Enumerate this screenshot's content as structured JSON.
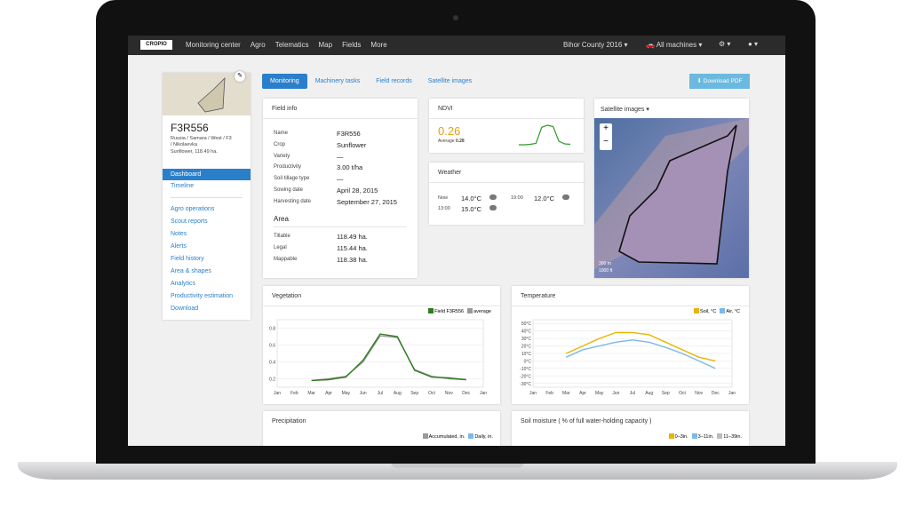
{
  "navbar": {
    "logo": "CROPIO",
    "items": [
      "Monitoring center",
      "Agro",
      "Telematics",
      "Map",
      "Fields",
      "More"
    ],
    "season": "Bihor County 2016",
    "machines": "All machines"
  },
  "sidebar": {
    "field_name": "F3R556",
    "location": "Russia / Samara / West / F3 / Nikolaevka",
    "summary": "Sunflower, 118.49 ha.",
    "menu_top": [
      "Dashboard",
      "Timeline"
    ],
    "menu": [
      "Agro operations",
      "Scout reports",
      "Notes",
      "Alerts",
      "Field history",
      "Area & shapes",
      "Analytics",
      "Productivity estimation",
      "Download"
    ]
  },
  "tabs": [
    "Monitoring",
    "Machinery tasks",
    "Field records",
    "Satellite images"
  ],
  "download": "Download PDF",
  "field_info": {
    "title": "Field info",
    "rows": [
      [
        "Name",
        "F3R556"
      ],
      [
        "Crop",
        "Sunflower"
      ],
      [
        "Variety",
        "—"
      ],
      [
        "Productivity",
        "3.00 t/ha"
      ],
      [
        "Soil tillage type",
        "—"
      ],
      [
        "Sowing date",
        "April 28, 2015"
      ],
      [
        "Harvesting date",
        "September 27, 2015"
      ]
    ],
    "area_title": "Area",
    "area_rows": [
      [
        "Tillable",
        "118.49 ha."
      ],
      [
        "Legal",
        "115.44 ha."
      ],
      [
        "Mappable",
        "118.38 ha."
      ]
    ]
  },
  "ndvi": {
    "title": "NDVI",
    "value": "0.26",
    "average_label": "Average",
    "average": "0.28",
    "sparkline": [
      0.1,
      0.1,
      0.11,
      0.13,
      0.5,
      0.55,
      0.52,
      0.18,
      0.12,
      0.11
    ]
  },
  "weather": {
    "title": "Weather",
    "rows": [
      {
        "time": "Now",
        "temp": "14.0°C"
      },
      {
        "time": "19:00",
        "temp": "12.0°C"
      },
      {
        "time": "13:00",
        "temp": "15.0°C"
      }
    ]
  },
  "satellite": {
    "title": "Satellite images",
    "zoom_in": "+",
    "zoom_out": "−",
    "scale_m": "300 m",
    "scale_ft": "1000 ft"
  },
  "chart_data": [
    {
      "type": "line",
      "title": "Vegetation",
      "categories": [
        "Jan",
        "Feb",
        "Mar",
        "Apr",
        "May",
        "Jun",
        "Jul",
        "Aug",
        "Sep",
        "Oct",
        "Nov",
        "Dec",
        "Jan"
      ],
      "series": [
        {
          "name": "Field F3R556",
          "color": "#2e7d1f",
          "values": [
            null,
            null,
            0.18,
            0.19,
            0.22,
            0.42,
            0.73,
            0.7,
            0.3,
            0.22,
            0.21,
            0.19,
            null
          ]
        },
        {
          "name": "average",
          "color": "#999999",
          "values": [
            null,
            null,
            0.18,
            0.2,
            0.23,
            0.4,
            0.71,
            0.69,
            0.31,
            0.23,
            0.2,
            0.19,
            null
          ]
        }
      ],
      "ylim": [
        0.1,
        0.9
      ],
      "yticks": [
        0.2,
        0.4,
        0.6,
        0.8
      ]
    },
    {
      "type": "line",
      "title": "Temperature",
      "categories": [
        "Jan",
        "Feb",
        "Mar",
        "Apr",
        "May",
        "Jun",
        "Jul",
        "Aug",
        "Sep",
        "Oct",
        "Nov",
        "Dec",
        "Jan"
      ],
      "series": [
        {
          "name": "Soil, °C",
          "color": "#e8b400",
          "values": [
            null,
            null,
            10,
            20,
            30,
            38,
            38,
            35,
            25,
            15,
            5,
            0,
            null
          ]
        },
        {
          "name": "Air, °C",
          "color": "#7bb9e8",
          "values": [
            null,
            null,
            5,
            15,
            20,
            25,
            28,
            25,
            18,
            10,
            0,
            -10,
            null
          ]
        }
      ],
      "ylim": [
        -35,
        55
      ],
      "yticks": [
        {
          "value": 50,
          "label": "50°C"
        },
        {
          "value": 40,
          "label": "40°C"
        },
        {
          "value": 30,
          "label": "30°C"
        },
        {
          "value": 20,
          "label": "20°C"
        },
        {
          "value": 10,
          "label": "10°C"
        },
        {
          "value": 0,
          "label": "0°C"
        },
        {
          "value": -10,
          "label": "-10°C"
        },
        {
          "value": -20,
          "label": "-20°C"
        },
        {
          "value": -30,
          "label": "-30°C"
        }
      ]
    }
  ],
  "precipitation": {
    "title": "Precipitation",
    "legend": [
      "Accumulated, in.",
      "Daily, in."
    ]
  },
  "soil_moisture": {
    "title": "Soil moisture ( % of full water-holding capacity )",
    "legend": [
      "0–3in.",
      "3–11in.",
      "11–39in."
    ]
  }
}
